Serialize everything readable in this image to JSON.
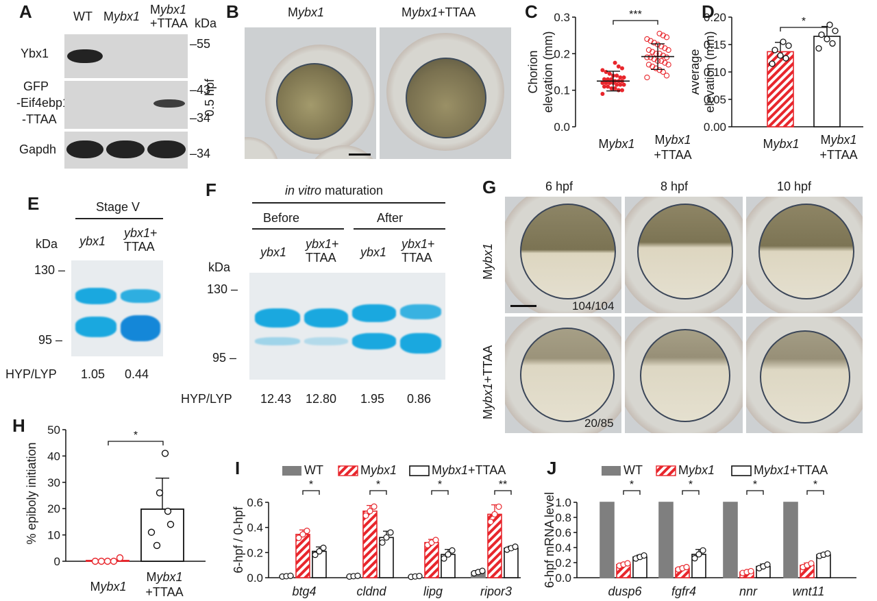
{
  "panel_letters": [
    "A",
    "B",
    "C",
    "D",
    "E",
    "F",
    "G",
    "H",
    "I",
    "J"
  ],
  "A": {
    "lanes": [
      "WT",
      "Mybx1",
      "Mybx1+TTAA"
    ],
    "lanes_parts": [
      {
        "pre": "",
        "it": "",
        "post": "WT"
      },
      {
        "pre": "M",
        "it": "ybx1",
        "post": ""
      },
      {
        "pre": "M",
        "it": "ybx1",
        "post": ""
      }
    ],
    "lane3_line2": "+TTAA",
    "kda": "kDa",
    "rows": [
      "Ybx1",
      "GFP",
      "-Eif4ebp1",
      "-TTAA",
      "Gapdh"
    ],
    "markers": [
      "55",
      "43",
      "34",
      "34"
    ]
  },
  "B": {
    "col1_pre": "M",
    "col1_it": "ybx1",
    "col2_pre": "M",
    "col2_it": "ybx1",
    "col2_post": "+TTAA",
    "stage": "0.5 hpf"
  },
  "E": {
    "title": "Stage V",
    "lane1": "ybx1",
    "lane2_it": "ybx1",
    "lane2_post": "+",
    "lane2_line2": "TTAA",
    "kda": "kDa",
    "m130": "130",
    "m95": "95",
    "ratio_label": "HYP/LYP",
    "ratios": [
      "1.05",
      "0.44"
    ]
  },
  "F": {
    "title_it": "in vitro",
    "title_post": " maturation",
    "before": "Before",
    "after": "After",
    "lanes": [
      "ybx1",
      "ybx1+",
      "ybx1",
      "ybx1+"
    ],
    "ttaa": "TTAA",
    "kda": "kDa",
    "m130": "130",
    "m95": "95",
    "ratio_label": "HYP/LYP",
    "ratios": [
      "12.43",
      "12.80",
      "1.95",
      "0.86"
    ]
  },
  "G": {
    "cols": [
      "6 hpf",
      "8 hpf",
      "10 hpf"
    ],
    "row1_pre": "M",
    "row1_it": "ybx1",
    "row2_pre": "M",
    "row2_it": "ybx1",
    "row2_post": "+TTAA",
    "count1": "104/104",
    "count2": "20/85"
  },
  "chart_data": [
    {
      "panel": "C",
      "type": "scatter",
      "ylabel": "Chorion elevation (mm)",
      "categories": [
        "Mybx1",
        "Mybx1+TTAA"
      ],
      "ylim": [
        0.0,
        0.3
      ],
      "yticks": [
        0.0,
        0.1,
        0.2,
        0.3
      ],
      "series": [
        {
          "name": "Mybx1",
          "mean": 0.125,
          "sd": 0.027,
          "values": [
            0.09,
            0.1,
            0.1,
            0.105,
            0.105,
            0.11,
            0.11,
            0.115,
            0.115,
            0.115,
            0.12,
            0.12,
            0.12,
            0.12,
            0.125,
            0.125,
            0.125,
            0.13,
            0.13,
            0.13,
            0.135,
            0.135,
            0.14,
            0.14,
            0.145,
            0.15,
            0.155,
            0.16,
            0.165,
            0.175
          ]
        },
        {
          "name": "Mybx1+TTAA",
          "mean": 0.192,
          "sd": 0.035,
          "values": [
            0.135,
            0.14,
            0.15,
            0.155,
            0.16,
            0.165,
            0.17,
            0.17,
            0.175,
            0.18,
            0.18,
            0.185,
            0.19,
            0.19,
            0.19,
            0.195,
            0.2,
            0.2,
            0.205,
            0.21,
            0.21,
            0.215,
            0.22,
            0.225,
            0.23,
            0.235,
            0.24,
            0.245,
            0.25,
            0.255
          ]
        }
      ],
      "significance": "***"
    },
    {
      "panel": "D",
      "type": "bar",
      "ylabel": "Average elevation (mm)",
      "categories": [
        "Mybx1",
        "Mybx1+TTAA"
      ],
      "ylim": [
        0.0,
        0.2
      ],
      "yticks": [
        0.0,
        0.05,
        0.1,
        0.15,
        0.2
      ],
      "values": [
        0.137,
        0.165
      ],
      "errors": [
        0.017,
        0.018
      ],
      "points": [
        [
          0.115,
          0.125,
          0.13,
          0.14,
          0.148,
          0.155
        ],
        [
          0.143,
          0.152,
          0.16,
          0.168,
          0.175,
          0.186
        ]
      ],
      "significance": "*"
    },
    {
      "panel": "H",
      "type": "bar",
      "ylabel": "% epiboly initiation",
      "categories": [
        "Mybx1",
        "Mybx1+TTAA"
      ],
      "ylim": [
        0,
        50
      ],
      "yticks": [
        0,
        10,
        20,
        30,
        40,
        50
      ],
      "values": [
        0.3,
        19.8
      ],
      "errors": [
        0.5,
        11.8
      ],
      "points": [
        [
          0,
          0,
          0,
          0,
          1.3
        ],
        [
          6,
          11,
          14,
          19,
          26,
          41
        ]
      ],
      "significance": "*"
    },
    {
      "panel": "I",
      "type": "bar",
      "ylabel": "6-hpf / 0-hpf",
      "legend": [
        "WT",
        "Mybx1",
        "Mybx1+TTAA"
      ],
      "categories": [
        "btg4",
        "cldnd",
        "lipg",
        "ripor3"
      ],
      "ylim": [
        0.0,
        0.6
      ],
      "yticks": [
        0.0,
        0.2,
        0.4,
        0.6
      ],
      "series": [
        {
          "name": "WT",
          "values": [
            0.012,
            0.012,
            0.01,
            0.045
          ],
          "errors": [
            0.004,
            0.004,
            0.004,
            0.012
          ]
        },
        {
          "name": "Mybx1",
          "values": [
            0.345,
            0.53,
            0.28,
            0.505
          ],
          "errors": [
            0.035,
            0.045,
            0.025,
            0.075
          ]
        },
        {
          "name": "Mybx1+TTAA",
          "values": [
            0.21,
            0.32,
            0.185,
            0.235
          ],
          "errors": [
            0.035,
            0.05,
            0.04,
            0.015
          ]
        }
      ],
      "significance": [
        "*",
        "*",
        "*",
        "**"
      ]
    },
    {
      "panel": "J",
      "type": "bar",
      "ylabel": "6-hpf mRNA level",
      "legend": [
        "WT",
        "Mybx1",
        "Mybx1+TTAA"
      ],
      "categories": [
        "dusp6",
        "fgfr4",
        "nnr",
        "wnt11"
      ],
      "ylim": [
        0.0,
        1.0
      ],
      "yticks": [
        0.0,
        0.2,
        0.4,
        0.6,
        0.8,
        1.0
      ],
      "series": [
        {
          "name": "WT",
          "values": [
            1.0,
            1.0,
            1.0,
            1.0
          ],
          "errors": [
            0,
            0,
            0,
            0
          ]
        },
        {
          "name": "Mybx1",
          "values": [
            0.175,
            0.125,
            0.075,
            0.165
          ],
          "errors": [
            0.02,
            0.02,
            0.015,
            0.03
          ]
        },
        {
          "name": "Mybx1+TTAA",
          "values": [
            0.275,
            0.31,
            0.15,
            0.305
          ],
          "errors": [
            0.025,
            0.065,
            0.03,
            0.02
          ]
        }
      ],
      "significance": [
        "*",
        "*",
        "*",
        "*"
      ]
    }
  ],
  "colors": {
    "wt": "#7f7f7f",
    "mybx1": "#e8262c",
    "ttaa": "#ffffff",
    "coomassie": "#1aa8df"
  }
}
